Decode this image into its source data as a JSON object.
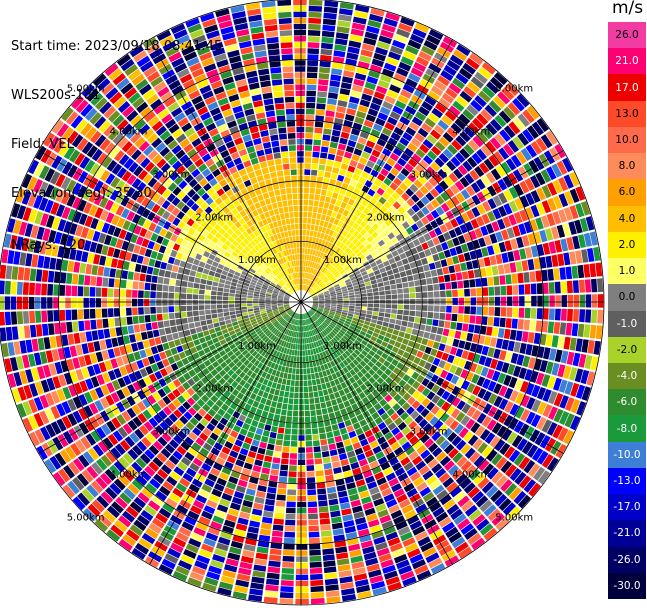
{
  "header": {
    "start_time": "Start time: 2023/09/18 08:41:45",
    "instrument": "WLS200s-181",
    "field": "Field: VEL",
    "elevation": "Elevation(deg): 35.30",
    "nrays": "NRays: 120"
  },
  "colorbar": {
    "unit": "m/s",
    "bins": [
      {
        "label": "26.0",
        "color": "#f23ca4"
      },
      {
        "label": "21.0",
        "color": "#ff0073"
      },
      {
        "label": "17.0",
        "color": "#ef0000"
      },
      {
        "label": "13.0",
        "color": "#ff4a2a"
      },
      {
        "label": "10.0",
        "color": "#ff6a4a"
      },
      {
        "label": "8.0",
        "color": "#ff8a5a"
      },
      {
        "label": "6.0",
        "color": "#ff9f00"
      },
      {
        "label": "4.0",
        "color": "#ffbf00"
      },
      {
        "label": "2.0",
        "color": "#fff000"
      },
      {
        "label": "1.0",
        "color": "#ffff66"
      },
      {
        "label": "0.0",
        "color": "#7f7f7f"
      },
      {
        "label": "-1.0",
        "color": "#5f5f5f"
      },
      {
        "label": "-2.0",
        "color": "#a9d22a"
      },
      {
        "label": "-4.0",
        "color": "#6b8e23"
      },
      {
        "label": "-6.0",
        "color": "#2e8b2e"
      },
      {
        "label": "-8.0",
        "color": "#1a9a3a"
      },
      {
        "label": "-10.0",
        "color": "#3d7fd6"
      },
      {
        "label": "-13.0",
        "color": "#0000ff"
      },
      {
        "label": "-17.0",
        "color": "#0000c8"
      },
      {
        "label": "-21.0",
        "color": "#000096"
      },
      {
        "label": "-26.0",
        "color": "#000064"
      },
      {
        "label": "-30.0",
        "color": "#00003c"
      }
    ]
  },
  "chart_data": {
    "type": "heatmap",
    "projection": "polar (PPI)",
    "nrays": 120,
    "field": "VEL",
    "units": "m/s",
    "range_rings_km": [
      {
        "value": 1,
        "label": "1.00km"
      },
      {
        "value": 2,
        "label": "2.00km"
      },
      {
        "value": 3,
        "label": "3.00km"
      },
      {
        "value": 4,
        "label": "4.00km"
      },
      {
        "value": 5,
        "label": "5.00km"
      }
    ],
    "spokes_deg": [
      0,
      30,
      60,
      90,
      120,
      150,
      180,
      210,
      240,
      270,
      300,
      330
    ],
    "range_gates": {
      "gate_km": 0.125,
      "count": 50
    },
    "velocity_pattern": [
      {
        "region": "north / upper sector, range 0-3 km",
        "value_range_ms": [
          1.0,
          6.0
        ]
      },
      {
        "region": "east-west band near center",
        "value_range_ms": [
          -1.0,
          0.0
        ]
      },
      {
        "region": "south / lower sector, range 0-3 km",
        "value_range_ms": [
          -8.0,
          -2.0
        ]
      },
      {
        "region": "range > 3 km, all azimuths",
        "value_range_ms": [
          -30.0,
          26.0
        ],
        "note": "noisy / mixed"
      }
    ]
  }
}
